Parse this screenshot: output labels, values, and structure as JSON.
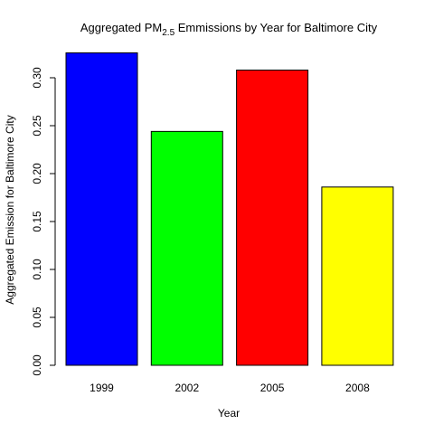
{
  "chart_data": {
    "type": "bar",
    "title": [
      "Aggregated PM",
      "2.5",
      " Emmissions by Year for Baltimore City"
    ],
    "x_label": "Year",
    "y_label": "Aggregated Emission for Baltimore City",
    "categories": [
      "1999",
      "2002",
      "2005",
      "2008"
    ],
    "values": [
      0.326,
      0.244,
      0.308,
      0.186
    ],
    "colors": [
      "#0000ff",
      "#00ff00",
      "#ff0000",
      "#ffff00"
    ],
    "ylim": [
      0,
      0.33
    ],
    "yticks": [
      {
        "value": 0,
        "label": "0.00"
      },
      {
        "value": 0.05,
        "label": "0.05"
      },
      {
        "value": 0.1,
        "label": "0.10"
      },
      {
        "value": 0.15,
        "label": "0.15"
      },
      {
        "value": 0.2,
        "label": "0.20"
      },
      {
        "value": 0.25,
        "label": "0.25"
      },
      {
        "value": 0.3,
        "label": "0.30"
      }
    ],
    "grid": false
  }
}
